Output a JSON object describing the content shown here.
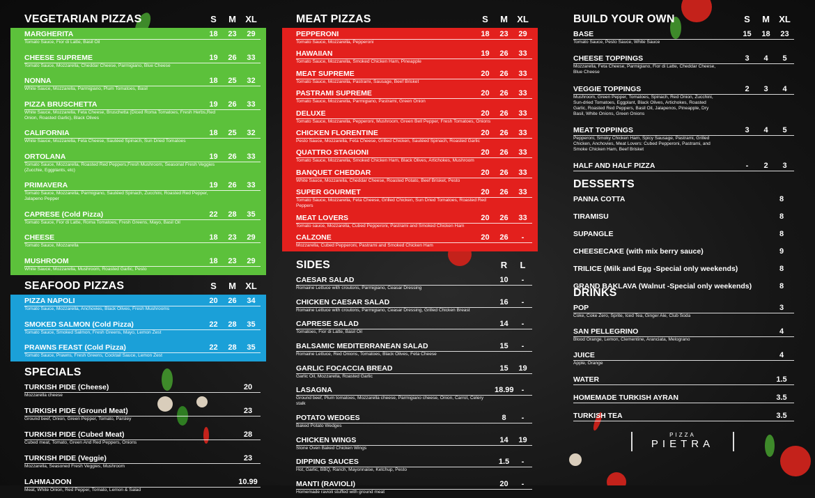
{
  "vegetarian": {
    "title": "VEGETARIAN PIZZAS",
    "sizes": [
      "S",
      "M",
      "XL"
    ],
    "items": [
      {
        "name": "MARGHERITA",
        "desc": "Tomato Sauce, Fior di Latte, Basil Oil",
        "prices": [
          "18",
          "23",
          "29"
        ]
      },
      {
        "name": "CHEESE SUPREME",
        "desc": "Tomato Sauce, Mozzarella, Cheddar Cheese, Parmigiano, Blue Cheese",
        "prices": [
          "19",
          "26",
          "33"
        ]
      },
      {
        "name": "NONNA",
        "desc": "White Sauce, Mozzarella, Parmigiano, Plum Tomatoes, Basil",
        "prices": [
          "18",
          "25",
          "32"
        ]
      },
      {
        "name": "PIZZA BRUSCHETTA",
        "desc": "White Sauce, Mozzarella, Feta Cheese, Bruschetta (Diced Roma Tomatoes, Fresh Herbs,Red Onion, Roasted Garlic), Black Olives",
        "prices": [
          "19",
          "26",
          "33"
        ]
      },
      {
        "name": "CALIFORNIA",
        "desc": "White Sauce, Mozzarella, Feta Cheese, Sautéed Spinach, Sun Dried Tomatoes",
        "prices": [
          "18",
          "25",
          "32"
        ]
      },
      {
        "name": "ORTOLANA",
        "desc": "Tomato Sauce, Mozzarella, Roasted Red Peppers,Fresh Mushroom, Seasonal Fresh Veggies (Zucchie, Eggplants, etc)",
        "prices": [
          "19",
          "26",
          "33"
        ]
      },
      {
        "name": "PRIMAVERA",
        "desc": "Tomato Sauce, Mozzarella, Parmigiano, Sautéed Spinach, Zucchini, Roasted Red Pepper, Jalapeno Pepper",
        "prices": [
          "19",
          "26",
          "33"
        ]
      },
      {
        "name": "CAPRESE  (Cold Pizza)",
        "desc": "Tomato Sauce, Fior di Latte, Roma Tomatoes, Fresh Greens, Mayo, Basil Oil",
        "prices": [
          "22",
          "28",
          "35"
        ]
      },
      {
        "name": "CHEESE",
        "desc": "Tomato Sauce, Mozzarella",
        "prices": [
          "18",
          "23",
          "29"
        ]
      },
      {
        "name": "MUSHROOM",
        "desc": "White Sauce, Mozzarella, Mushroom, Roasted Garlic, Pesto",
        "prices": [
          "18",
          "23",
          "29"
        ]
      }
    ]
  },
  "seafood": {
    "title": "SEAFOOD PIZZAS",
    "sizes": [
      "S",
      "M",
      "XL"
    ],
    "items": [
      {
        "name": "PIZZA NAPOLI",
        "desc": "Tomato Sauce, Mozzarella, Anchovies, Black Olives, Fresh Mushrooms",
        "prices": [
          "20",
          "26",
          "34"
        ]
      },
      {
        "name": "SMOKED SALMON (Cold Pizza)",
        "desc": "Tomato Sauce, Smoked Salmon, Fresh Greens, Mayo, Lemon Zest",
        "prices": [
          "22",
          "28",
          "35"
        ]
      },
      {
        "name": "PRAWNS FEAST (Cold Pizza)",
        "desc": "Tomato Sauce, Prawns, Fresh Greens, Cocktail Sauce, Lemon Zest",
        "prices": [
          "22",
          "28",
          "35"
        ]
      }
    ]
  },
  "specials": {
    "title": "SPECIALS",
    "items": [
      {
        "name": "TURKISH PIDE (Cheese)",
        "desc": "Mozzarella cheese",
        "prices": [
          "20"
        ]
      },
      {
        "name": "TURKISH PIDE (Ground Meat)",
        "desc": "Ground beef, Onion, Green Pepper, Tomato, Parsley",
        "prices": [
          "23"
        ]
      },
      {
        "name": "TURKISH PIDE (Cubed Meat)",
        "desc": "Cubed meat, Tomato, Green And Red Peppers, Onions",
        "prices": [
          "28"
        ]
      },
      {
        "name": "TURKISH PIDE (Veggie)",
        "desc": "Mozzarella, Seasoned Fresh Veggies, Mushroom",
        "prices": [
          "23"
        ]
      },
      {
        "name": "LAHMAJOON",
        "desc": "Meat, White Onion, Red Pepper, Tomato, Lemon & Salad",
        "prices": [
          "10.99"
        ]
      }
    ]
  },
  "meat": {
    "title": "MEAT PIZZAS",
    "sizes": [
      "S",
      "M",
      "XL"
    ],
    "items": [
      {
        "name": "PEPPERONI",
        "desc": "Tomato Sauce, Mozzarella, Pepperoni",
        "prices": [
          "18",
          "23",
          "29"
        ]
      },
      {
        "name": "HAWAIIAN",
        "desc": "Tomato Sauce, Mozzarella, Smoked Chicken Ham, Pineapple",
        "prices": [
          "19",
          "26",
          "33"
        ]
      },
      {
        "name": "MEAT SUPREME",
        "desc": "Tomato Sauce, Mozzarella, Pastrami, Sausage, Beef Brisket",
        "prices": [
          "20",
          "26",
          "33"
        ]
      },
      {
        "name": "PASTRAMI SUPREME",
        "desc": "Tomato Sauce, Mozzarella, Parmigiano, Pastrami, Green Onion",
        "prices": [
          "20",
          "26",
          "33"
        ]
      },
      {
        "name": "DELUXE",
        "desc": "Tomato Sauce, Mozzarella, Pepperoni, Mushroom, Green Bell Pepper, Fresh Tomatoes, Onions",
        "prices": [
          "20",
          "26",
          "33"
        ]
      },
      {
        "name": "CHICKEN FLORENTINE",
        "desc": "Pesto Sauce, Mozzarella, Feta Cheese, Grilled Chicken, Sautéed Spinach, Roasted Garlic",
        "prices": [
          "20",
          "26",
          "33"
        ]
      },
      {
        "name": "QUATTRO STAGIONI",
        "desc": "Tomato Sauce, Mozzarella, Smoked Chicken Ham, Black Olives, Artichokes, Mushroom",
        "prices": [
          "20",
          "26",
          "33"
        ]
      },
      {
        "name": "BANQUET CHEDDAR",
        "desc": "White Sauce, Mozzarella, Cheddar Cheese, Roasted Potato, Beef Brisket, Pesto",
        "prices": [
          "20",
          "26",
          "33"
        ]
      },
      {
        "name": "SUPER GOURMET",
        "desc": "Tomato Sauce, Mozzarella, Feta Cheese, Grilled Chicken, Sun Dried Tomatoes, Roasted Red Peppers",
        "prices": [
          "20",
          "26",
          "33"
        ]
      },
      {
        "name": "MEAT LOVERS",
        "desc": "Tomato sauce, Mozzarella, Cubed Pepperoni, Pastrami and Smoked Chicken Ham",
        "prices": [
          "20",
          "26",
          "33"
        ]
      },
      {
        "name": "CALZONE",
        "desc": "Mozzarella, Cubed Pepperoni, Pastrami and Smoked Chicken Ham",
        "prices": [
          "20",
          "26",
          "-"
        ]
      }
    ]
  },
  "sides": {
    "title": "SIDES",
    "sizes": [
      "R",
      "L"
    ],
    "items": [
      {
        "name": "CAESAR SALAD",
        "desc": "Romaine Lettuce with croutons, Parmigiano, Ceasar Dressing",
        "prices": [
          "10",
          "-"
        ]
      },
      {
        "name": "CHICKEN CAESAR SALAD",
        "desc": "Romaine Lettuce with croutons, Parmigiano, Ceasar Dressing, Grilled Chicken Breast",
        "prices": [
          "16",
          "-"
        ]
      },
      {
        "name": "CAPRESE SALAD",
        "desc": "Tomatoes, Fior di Latte, Basil Oil",
        "prices": [
          "14",
          "-"
        ]
      },
      {
        "name": "BALSAMIC MEDITERRANEAN SALAD",
        "desc": "Romaine Lettuce, Red Onions, Tomatoes, Black Olives, Feta Cheese",
        "prices": [
          "15",
          "-"
        ]
      },
      {
        "name": "GARLIC FOCACCIA BREAD",
        "desc": "Garlic Oil, Mozzarella, Roasted Garlic",
        "prices": [
          "15",
          "19"
        ]
      },
      {
        "name": "LASAGNA",
        "desc": "Ground beef, Plum tomatoes, Mozzarella cheese, Parmigiano cheese, Onion, Carrot, Celery stalk",
        "prices": [
          "18.99",
          "-"
        ]
      },
      {
        "name": "POTATO WEDGES",
        "desc": "Baked Potato Wedges",
        "prices": [
          "8",
          "-"
        ]
      },
      {
        "name": "CHICKEN WINGS",
        "desc": "Stone Oven Baked Chicken Wings",
        "prices": [
          "14",
          "19"
        ]
      },
      {
        "name": "DIPPING SAUCES",
        "desc": "Hot, Garlic, BBQ, Ranch, Mayonnaise, Ketchup, Pesto",
        "prices": [
          "1.5",
          "-"
        ]
      },
      {
        "name": "MANTI (RAVIOLI)",
        "desc": "Homemade ravioli stuffed with ground meat",
        "prices": [
          "20",
          "-"
        ]
      }
    ]
  },
  "build": {
    "title": "BUILD YOUR OWN",
    "sizes": [
      "S",
      "M",
      "XL"
    ],
    "items": [
      {
        "name": "BASE",
        "desc": "Tomato Sauce, Pesto Sauce, White Sauce",
        "prices": [
          "15",
          "18",
          "23"
        ]
      },
      {
        "name": "CHEESE TOPPINGS",
        "desc": "Mozzarella, Feta Cheese, Parmigiano, Fior di Latte, Cheddar Cheese, Blue Cheese",
        "prices": [
          "3",
          "4",
          "5"
        ]
      },
      {
        "name": "VEGGIE TOPPINGS",
        "desc": "Mushroom, Green Pepper, Tomatoes, Spinach, Red Onion, Zucchini, Sun-dried Tomatoes, Eggplant, Black Olives, Artichokes, Roasted Garlic, Roasted Red Peppers, Basil Oil, Jalapenos, Pineapple, Dry Basil, White Onions, Green Onions",
        "prices": [
          "2",
          "3",
          "4"
        ]
      },
      {
        "name": "MEAT TOPPINGS",
        "desc": "Pepperoni, Smoky Chicken Ham, Spicy Sausage, Pastrami, Grilled Chicken, Anchovies, Meat Lovers: Cubed Pepperoni, Pastrami, and Smoke Chicken Ham, Beef Brisket",
        "prices": [
          "3",
          "4",
          "5"
        ]
      },
      {
        "name": "HALF AND HALF PIZZA",
        "prices": [
          "-",
          "2",
          "3"
        ]
      }
    ]
  },
  "desserts": {
    "title": "DESSERTS",
    "items": [
      {
        "name": "PANNA COTTA",
        "prices": [
          "8"
        ]
      },
      {
        "name": "TIRAMISU",
        "prices": [
          "8"
        ]
      },
      {
        "name": "SUPANGLE",
        "prices": [
          "8"
        ]
      },
      {
        "name": "CHEESECAKE (with mix berry sauce)",
        "prices": [
          "9"
        ]
      },
      {
        "name": "TRILICE (Milk and Egg -Special only weekends)",
        "prices": [
          "8"
        ]
      },
      {
        "name": "GRAND BAKLAVA (Walnut -Special only weekends)",
        "prices": [
          "8"
        ]
      }
    ]
  },
  "drinks": {
    "title": "DRINKS",
    "items": [
      {
        "name": "POP",
        "desc": "Coke, Coke Zero, Sprite, Iced Tea, Ginger Ale, Club Soda",
        "prices": [
          "3"
        ]
      },
      {
        "name": "SAN PELLEGRINO",
        "desc": "Blood Orange, Lemon, Clementine, Aranciata, Melograno",
        "prices": [
          "4"
        ]
      },
      {
        "name": "JUICE",
        "desc": "Apple, Orange",
        "prices": [
          "4"
        ]
      },
      {
        "name": "WATER",
        "prices": [
          "1.5"
        ]
      },
      {
        "name": "HOMEMADE TURKISH AYRAN",
        "prices": [
          "3.5"
        ]
      },
      {
        "name": "TURKISH TEA",
        "prices": [
          "3.5"
        ]
      }
    ]
  },
  "logo": {
    "small": "PIZZA",
    "big": "PIETRA"
  }
}
